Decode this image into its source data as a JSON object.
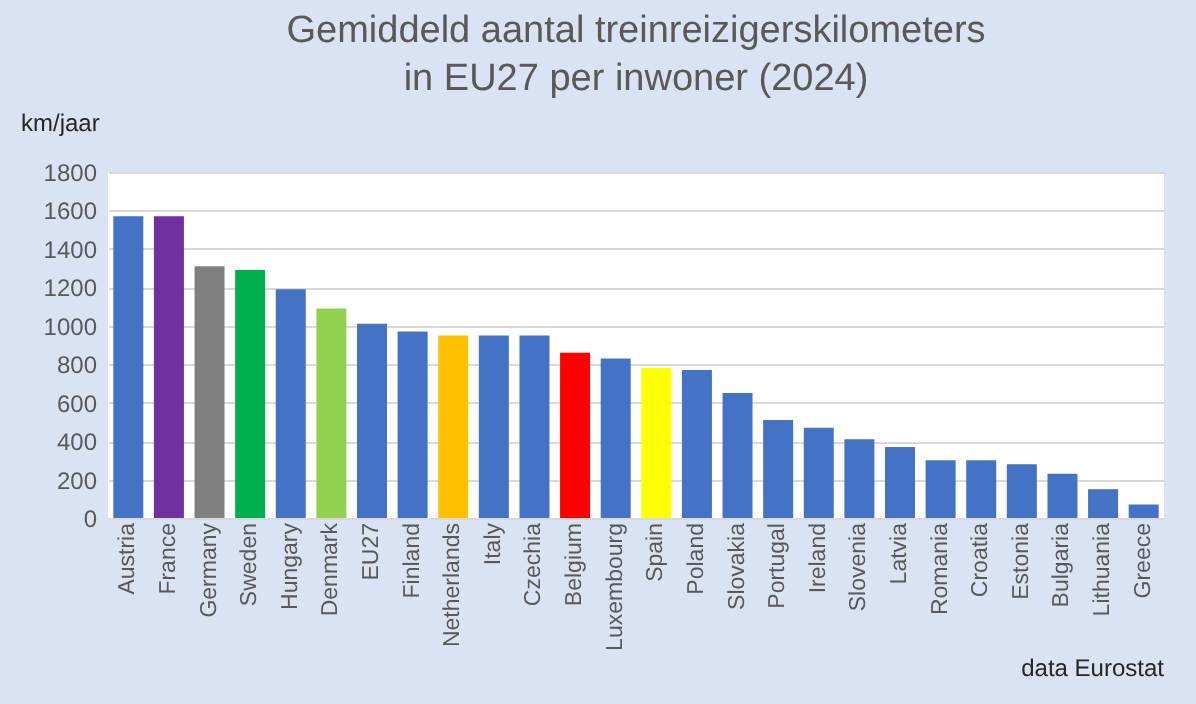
{
  "chart_data": {
    "type": "bar",
    "title": "Gemiddeld aantal treinreizigerskilometers in EU27 per inwoner (2024)",
    "ylabel": "km/jaar",
    "categories": [
      "Austria",
      "France",
      "Germany",
      "Sweden",
      "Hungary",
      "Denmark",
      "EU27",
      "Finland",
      "Netherlands",
      "Italy",
      "Czechia",
      "Belgium",
      "Luxembourg",
      "Spain",
      "Poland",
      "Slovakia",
      "Portugal",
      "Ireland",
      "Slovenia",
      "Latvia",
      "Romania",
      "Croatia",
      "Estonia",
      "Bulgaria",
      "Lithuania",
      "Greece"
    ],
    "values": [
      1570,
      1570,
      1310,
      1290,
      1190,
      1090,
      1010,
      970,
      950,
      950,
      950,
      860,
      830,
      780,
      770,
      650,
      510,
      470,
      410,
      370,
      300,
      300,
      280,
      230,
      150,
      70
    ],
    "colors": [
      "#4472c4",
      "#7030a0",
      "#808080",
      "#00b050",
      "#4472c4",
      "#92d050",
      "#4472c4",
      "#4472c4",
      "#ffc000",
      "#4472c4",
      "#4472c4",
      "#ff0000",
      "#4472c4",
      "#ffff00",
      "#4472c4",
      "#4472c4",
      "#4472c4",
      "#4472c4",
      "#4472c4",
      "#4472c4",
      "#4472c4",
      "#4472c4",
      "#4472c4",
      "#4472c4",
      "#4472c4",
      "#4472c4"
    ],
    "ylim": [
      0,
      1800
    ],
    "yticks": [
      0,
      200,
      400,
      600,
      800,
      1000,
      1200,
      1400,
      1600,
      1800
    ],
    "grid": "y",
    "annotations": [
      "data Eurostat"
    ]
  }
}
